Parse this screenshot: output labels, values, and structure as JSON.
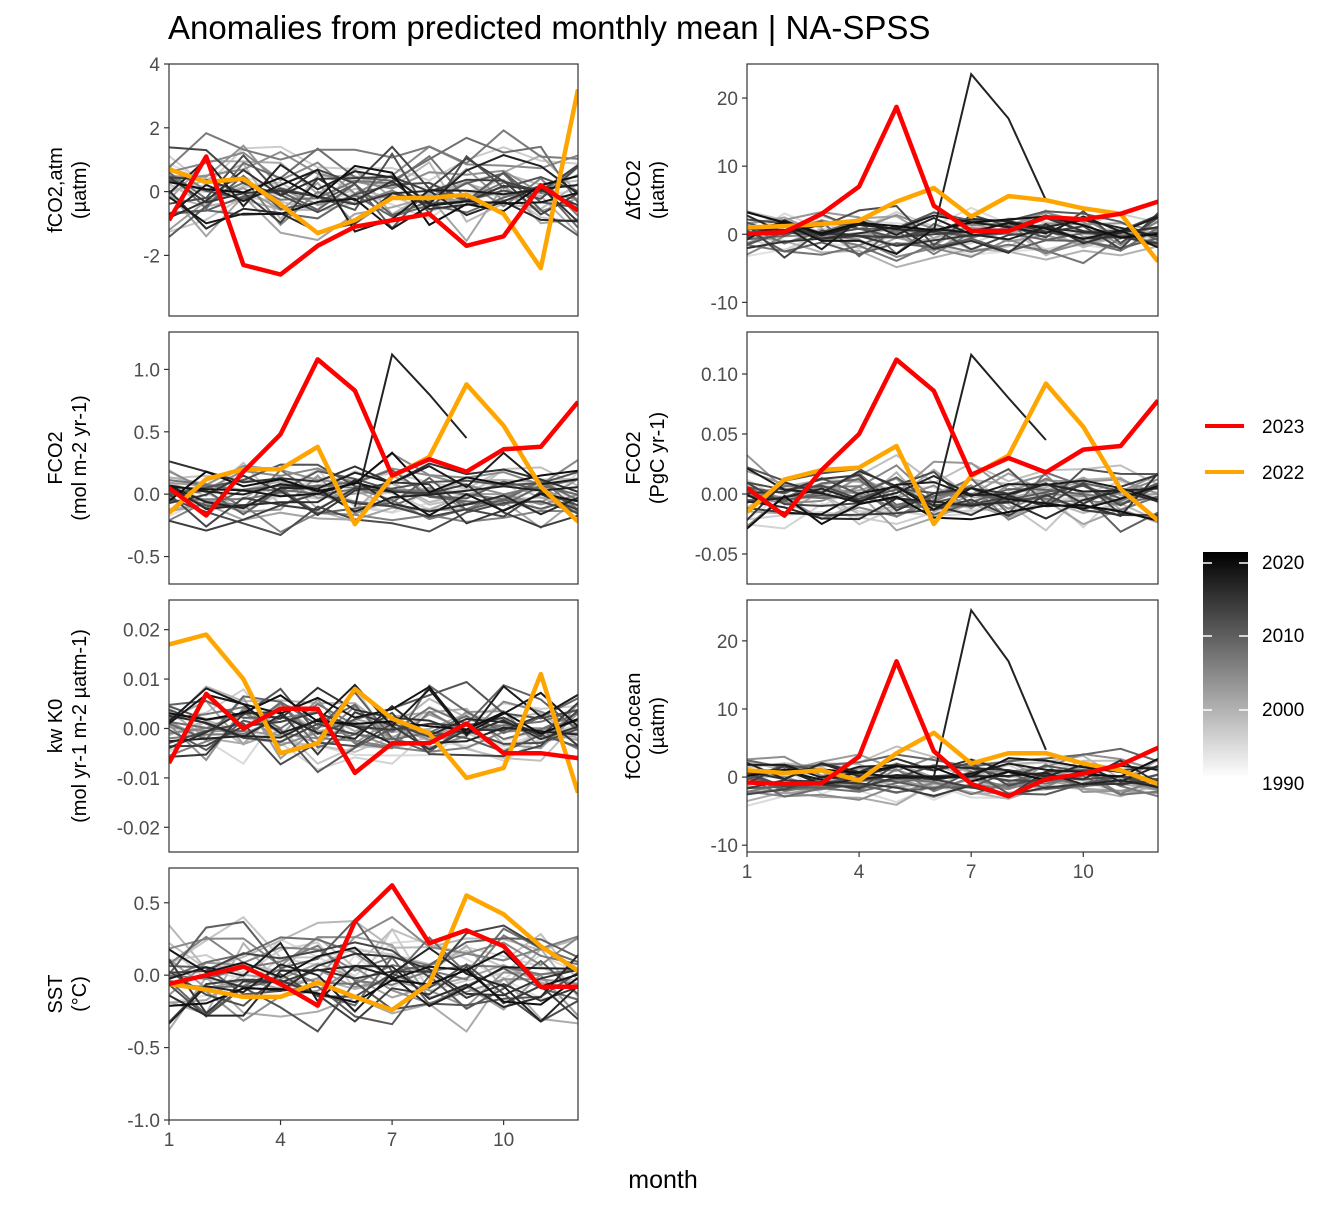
{
  "title": "Anomalies from predicted monthly mean | NA-SPSS",
  "xlabel": "month",
  "legend_years": [
    {
      "label": "2023",
      "color": "#ff0000"
    },
    {
      "label": "2022",
      "color": "#ffa500"
    }
  ],
  "colorbar": {
    "labels": [
      "2020",
      "2010",
      "2000",
      "1990"
    ],
    "range": [
      1990,
      2021
    ]
  },
  "chart_data": [
    {
      "type": "line",
      "id": "fco2atm",
      "ylabel_lines": [
        "fCO2,atm",
        "(µatm)"
      ],
      "yticks": [
        4,
        2,
        0,
        -2
      ],
      "ylim": [
        -3.9,
        4.0
      ],
      "xlim": [
        1,
        12
      ],
      "xticks": [],
      "x": [
        1,
        2,
        3,
        4,
        5,
        6,
        7,
        8,
        9,
        10,
        11,
        12
      ],
      "series_2023": [
        -0.9,
        1.1,
        -2.3,
        -2.6,
        -1.7,
        -1.1,
        -0.9,
        -0.7,
        -1.7,
        -1.4,
        0.2,
        -0.6
      ],
      "series_2022": [
        0.7,
        0.3,
        0.4,
        -0.4,
        -1.3,
        -0.9,
        -0.2,
        -0.2,
        -0.1,
        -0.7,
        -2.4,
        3.2
      ],
      "grey_amplitude": 1.3
    },
    {
      "type": "line",
      "id": "dfco2",
      "ylabel_lines": [
        "ΔfCO2",
        "(µatm)"
      ],
      "yticks": [
        20,
        10,
        0,
        -10
      ],
      "ylim": [
        -12,
        25
      ],
      "xlim": [
        1,
        12
      ],
      "xticks": [],
      "x": [
        1,
        2,
        3,
        4,
        5,
        6,
        7,
        8,
        9,
        10,
        11,
        12
      ],
      "series_2023": [
        0.1,
        0.3,
        3.0,
        7.0,
        18.7,
        4.2,
        0.5,
        0.5,
        2.5,
        2.2,
        3.0,
        4.8
      ],
      "series_2022": [
        1.0,
        1.2,
        1.5,
        2.0,
        4.8,
        6.8,
        2.6,
        5.6,
        5.0,
        3.8,
        3.0,
        -4.0
      ],
      "grey_amplitude": 3.5,
      "highlight": {
        "x": [
          6,
          7,
          8,
          9
        ],
        "y": [
          0.5,
          23.5,
          17.0,
          5.0
        ]
      }
    },
    {
      "type": "line",
      "id": "fco2flux",
      "ylabel_lines": [
        "FCO2",
        "(mol m-2 yr-1)"
      ],
      "yticks": [
        1.0,
        0.5,
        0.0,
        -0.5
      ],
      "ylim": [
        -0.72,
        1.3
      ],
      "xlim": [
        1,
        12
      ],
      "xticks": [],
      "x": [
        1,
        2,
        3,
        4,
        5,
        6,
        7,
        8,
        9,
        10,
        11,
        12
      ],
      "series_2023": [
        0.05,
        -0.17,
        0.18,
        0.48,
        1.08,
        0.83,
        0.15,
        0.28,
        0.18,
        0.36,
        0.38,
        0.74
      ],
      "series_2022": [
        -0.15,
        0.12,
        0.2,
        0.2,
        0.38,
        -0.24,
        0.14,
        0.3,
        0.88,
        0.55,
        0.06,
        -0.22
      ],
      "grey_amplitude": 0.25,
      "highlight": {
        "x": [
          6,
          7,
          8,
          9
        ],
        "y": [
          -0.1,
          1.12,
          0.8,
          0.45
        ]
      }
    },
    {
      "type": "line",
      "id": "fco2pgc",
      "ylabel_lines": [
        "FCO2",
        "(PgC yr-1)"
      ],
      "yticks": [
        0.1,
        0.05,
        0.0,
        -0.05
      ],
      "ylim": [
        -0.075,
        0.135
      ],
      "xlim": [
        1,
        12
      ],
      "xticks": [],
      "x": [
        1,
        2,
        3,
        4,
        5,
        6,
        7,
        8,
        9,
        10,
        11,
        12
      ],
      "series_2023": [
        0.005,
        -0.018,
        0.02,
        0.05,
        0.112,
        0.086,
        0.016,
        0.03,
        0.018,
        0.037,
        0.04,
        0.078
      ],
      "series_2022": [
        -0.015,
        0.012,
        0.02,
        0.022,
        0.04,
        -0.025,
        0.015,
        0.032,
        0.092,
        0.056,
        0.004,
        -0.022
      ],
      "grey_amplitude": 0.025,
      "highlight": {
        "x": [
          6,
          7,
          8,
          9
        ],
        "y": [
          -0.01,
          0.116,
          0.08,
          0.045
        ]
      }
    },
    {
      "type": "line",
      "id": "kwk0",
      "ylabel_lines": [
        "kw K0",
        "(mol yr-1 m-2 µatm-1)"
      ],
      "yticks": [
        0.02,
        0.01,
        0.0,
        -0.01,
        -0.02
      ],
      "ylim": [
        -0.025,
        0.026
      ],
      "xlim": [
        1,
        12
      ],
      "xticks": [],
      "x": [
        1,
        2,
        3,
        4,
        5,
        6,
        7,
        8,
        9,
        10,
        11,
        12
      ],
      "series_2023": [
        -0.007,
        0.007,
        0.0,
        0.004,
        0.004,
        -0.009,
        -0.003,
        -0.003,
        0.001,
        -0.005,
        -0.005,
        -0.006
      ],
      "series_2022": [
        0.017,
        0.019,
        0.01,
        -0.005,
        -0.003,
        0.008,
        0.002,
        -0.001,
        -0.01,
        -0.008,
        0.011,
        -0.013
      ],
      "grey_amplitude": 0.008
    },
    {
      "type": "line",
      "id": "fco2ocean",
      "ylabel_lines": [
        "fCO2,ocean",
        "(µatm)"
      ],
      "yticks": [
        20,
        10,
        0,
        -10
      ],
      "ylim": [
        -11,
        26
      ],
      "xlim": [
        1,
        12
      ],
      "xticks": [
        1,
        4,
        7,
        10
      ],
      "x": [
        1,
        2,
        3,
        4,
        5,
        6,
        7,
        8,
        9,
        10,
        11,
        12
      ],
      "series_2023": [
        -0.8,
        -1.0,
        -0.9,
        3.0,
        17.0,
        3.8,
        -1.0,
        -2.8,
        -0.3,
        0.5,
        1.8,
        4.3
      ],
      "series_2022": [
        1.0,
        0.6,
        1.0,
        -0.5,
        3.5,
        6.5,
        2.0,
        3.5,
        3.5,
        2.0,
        1.0,
        -1.0
      ],
      "grey_amplitude": 3.0,
      "highlight": {
        "x": [
          6,
          7,
          8,
          9
        ],
        "y": [
          0.0,
          24.5,
          17.0,
          4.0
        ]
      }
    },
    {
      "type": "line",
      "id": "sst",
      "ylabel_lines": [
        "SST",
        "(°C)"
      ],
      "yticks": [
        0.5,
        0.0,
        -0.5,
        -1.0
      ],
      "ylim": [
        -1.0,
        0.74
      ],
      "xlim": [
        1,
        12
      ],
      "xticks": [
        1,
        4,
        7,
        10
      ],
      "x": [
        1,
        2,
        3,
        4,
        5,
        6,
        7,
        8,
        9,
        10,
        11,
        12
      ],
      "series_2023": [
        -0.06,
        0.0,
        0.06,
        -0.06,
        -0.21,
        0.37,
        0.62,
        0.22,
        0.31,
        0.2,
        -0.08,
        -0.08
      ],
      "series_2022": [
        -0.06,
        -0.1,
        -0.15,
        -0.15,
        -0.05,
        -0.15,
        -0.24,
        -0.06,
        0.55,
        0.42,
        0.2,
        0.03
      ],
      "grey_amplitude": 0.3
    }
  ]
}
